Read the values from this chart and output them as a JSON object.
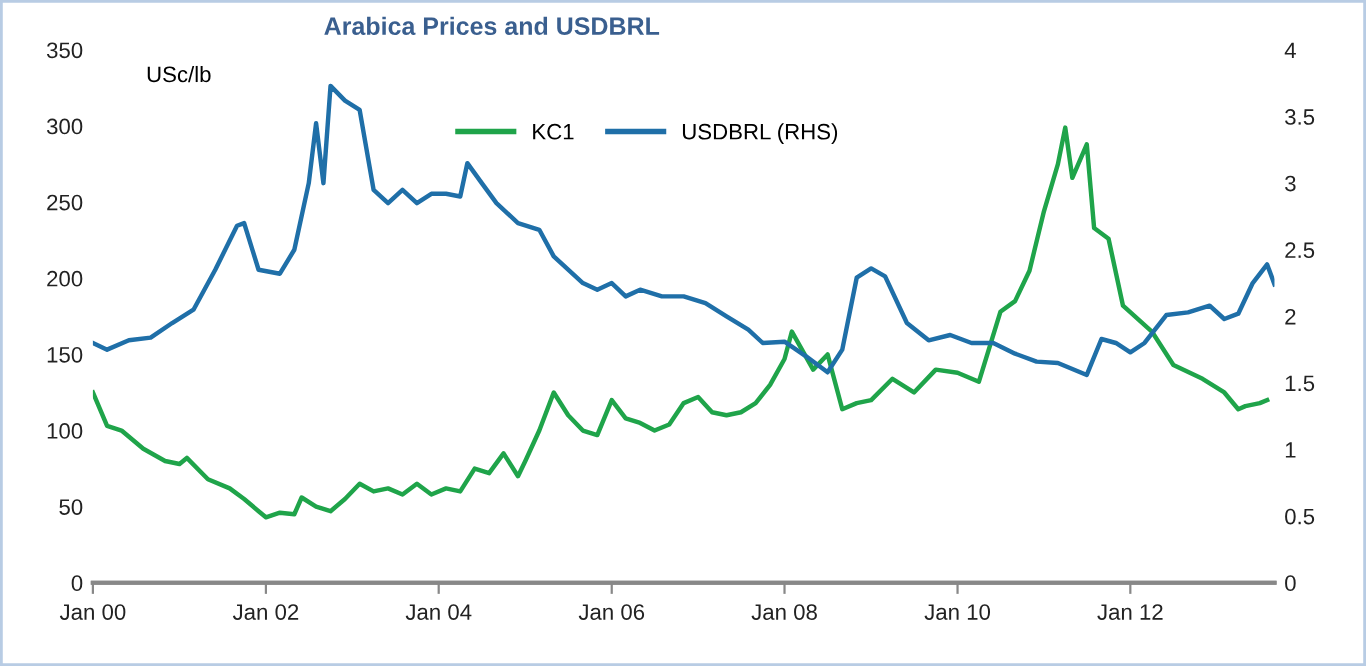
{
  "chart_data": {
    "type": "line",
    "title": "Arabica Prices and USDBRL",
    "ylabel": "USc/lb",
    "legend": "top",
    "grid": false,
    "marker": "none",
    "line_style": "solid",
    "xlim": [
      "2000-01",
      "2013-09"
    ],
    "xticks": [
      {
        "value": "2000-01",
        "label": "Jan 00"
      },
      {
        "value": "2002-01",
        "label": "Jan 02"
      },
      {
        "value": "2004-01",
        "label": "Jan 04"
      },
      {
        "value": "2006-01",
        "label": "Jan 06"
      },
      {
        "value": "2008-01",
        "label": "Jan 08"
      },
      {
        "value": "2010-01",
        "label": "Jan 10"
      },
      {
        "value": "2012-01",
        "label": "Jan 12"
      }
    ],
    "ylim": [
      0,
      350
    ],
    "yticks": [
      0,
      50,
      100,
      150,
      200,
      250,
      300,
      350
    ],
    "y2lim": [
      0,
      4
    ],
    "y2ticks": [
      0,
      0.5,
      1,
      1.5,
      2,
      2.5,
      3,
      3.5,
      4
    ],
    "series": [
      {
        "name": "KC1",
        "color": "#1fa44a",
        "axis": "y",
        "x": [
          "2000-01",
          "2000-03",
          "2000-05",
          "2000-08",
          "2000-11",
          "2001-01",
          "2001-02",
          "2001-05",
          "2001-08",
          "2001-10",
          "2001-12",
          "2002-01",
          "2002-03",
          "2002-05",
          "2002-06",
          "2002-08",
          "2002-10",
          "2002-12",
          "2003-02",
          "2003-04",
          "2003-06",
          "2003-08",
          "2003-10",
          "2003-12",
          "2004-02",
          "2004-04",
          "2004-06",
          "2004-08",
          "2004-10",
          "2004-12",
          "2005-01",
          "2005-03",
          "2005-05",
          "2005-07",
          "2005-09",
          "2005-11",
          "2006-01",
          "2006-03",
          "2006-05",
          "2006-07",
          "2006-09",
          "2006-11",
          "2007-01",
          "2007-03",
          "2007-05",
          "2007-07",
          "2007-09",
          "2007-11",
          "2008-01",
          "2008-02",
          "2008-05",
          "2008-07",
          "2008-09",
          "2008-11",
          "2009-01",
          "2009-04",
          "2009-07",
          "2009-10",
          "2010-01",
          "2010-04",
          "2010-07",
          "2010-09",
          "2010-11",
          "2011-01",
          "2011-03",
          "2011-04",
          "2011-05",
          "2011-07",
          "2011-08",
          "2011-10",
          "2011-12",
          "2012-04",
          "2012-07",
          "2012-11",
          "2013-02",
          "2013-04",
          "2013-05",
          "2013-07",
          "2013-08"
        ],
        "values": [
          125,
          103,
          100,
          88,
          80,
          78,
          82,
          68,
          62,
          55,
          47,
          43,
          46,
          45,
          56,
          50,
          47,
          55,
          65,
          60,
          62,
          58,
          65,
          58,
          62,
          60,
          75,
          72,
          85,
          70,
          80,
          100,
          125,
          110,
          100,
          97,
          120,
          108,
          105,
          100,
          104,
          118,
          122,
          112,
          110,
          112,
          118,
          130,
          147,
          165,
          140,
          150,
          114,
          118,
          120,
          134,
          125,
          140,
          138,
          132,
          178,
          185,
          205,
          244,
          275,
          299,
          266,
          288,
          233,
          226,
          182,
          165,
          143,
          134,
          125,
          114,
          116,
          118,
          120
        ]
      },
      {
        "name": "USDBRL (RHS)",
        "color": "#1f6fa8",
        "axis": "y2",
        "x": [
          "2000-01",
          "2000-03",
          "2000-06",
          "2000-09",
          "2000-12",
          "2001-03",
          "2001-06",
          "2001-09",
          "2001-10",
          "2001-12",
          "2002-03",
          "2002-05",
          "2002-07",
          "2002-08",
          "2002-09",
          "2002-10",
          "2002-12",
          "2003-02",
          "2003-04",
          "2003-06",
          "2003-08",
          "2003-10",
          "2003-12",
          "2004-02",
          "2004-04",
          "2004-05",
          "2004-07",
          "2004-09",
          "2004-12",
          "2005-03",
          "2005-05",
          "2005-07",
          "2005-09",
          "2005-11",
          "2006-01",
          "2006-03",
          "2006-05",
          "2006-08",
          "2006-11",
          "2007-02",
          "2007-05",
          "2007-08",
          "2007-10",
          "2008-01",
          "2008-04",
          "2008-07",
          "2008-09",
          "2008-11",
          "2009-01",
          "2009-03",
          "2009-06",
          "2009-09",
          "2009-12",
          "2010-03",
          "2010-06",
          "2010-09",
          "2010-12",
          "2011-03",
          "2011-07",
          "2011-09",
          "2011-11",
          "2012-01",
          "2012-03",
          "2012-06",
          "2012-09",
          "2012-12",
          "2013-02",
          "2013-04",
          "2013-06",
          "2013-08",
          "2013-09"
        ],
        "values": [
          1.8,
          1.75,
          1.82,
          1.84,
          1.95,
          2.05,
          2.35,
          2.68,
          2.7,
          2.35,
          2.32,
          2.5,
          3.0,
          3.45,
          3.0,
          3.73,
          3.62,
          3.55,
          2.95,
          2.85,
          2.95,
          2.85,
          2.92,
          2.92,
          2.9,
          3.15,
          3.0,
          2.85,
          2.7,
          2.65,
          2.45,
          2.35,
          2.25,
          2.2,
          2.25,
          2.15,
          2.2,
          2.15,
          2.15,
          2.1,
          2.0,
          1.9,
          1.8,
          1.81,
          1.7,
          1.58,
          1.75,
          2.29,
          2.36,
          2.3,
          1.95,
          1.82,
          1.86,
          1.8,
          1.8,
          1.72,
          1.66,
          1.65,
          1.56,
          1.83,
          1.8,
          1.73,
          1.8,
          2.01,
          2.03,
          2.08,
          1.98,
          2.02,
          2.25,
          2.39,
          2.24
        ]
      }
    ]
  }
}
